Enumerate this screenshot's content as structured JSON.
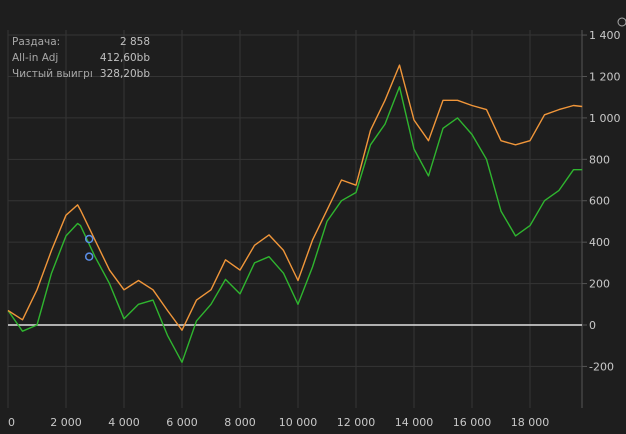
{
  "stats": [
    {
      "label": "Раздача:",
      "value": "2 858"
    },
    {
      "label": "All-in Adj",
      "value": "412,60bb"
    },
    {
      "label": "Чистый выигрı",
      "value": "328,20bb"
    }
  ],
  "chart_data": {
    "type": "line",
    "xlim": [
      0,
      19800
    ],
    "ylim": [
      -300,
      1450
    ],
    "xticks": [
      0,
      2000,
      4000,
      6000,
      8000,
      10000,
      12000,
      14000,
      16000,
      18000
    ],
    "xtick_labels": [
      "0",
      "2 000",
      "4 000",
      "6 000",
      "8 000",
      "10 000",
      "12 000",
      "14 000",
      "16 000",
      "18 000"
    ],
    "yticks": [
      -200,
      0,
      200,
      400,
      600,
      800,
      1000,
      1200,
      1400
    ],
    "ytick_labels": [
      "-200",
      "0",
      "200",
      "400",
      "600",
      "800",
      "1 000",
      "1 200",
      "1 400"
    ],
    "grid": true,
    "x": [
      0,
      500,
      1000,
      1500,
      2000,
      2400,
      2500,
      3000,
      3500,
      4000,
      4500,
      5000,
      5500,
      6000,
      6500,
      7000,
      7500,
      8000,
      8500,
      9000,
      9500,
      10000,
      10500,
      11000,
      11500,
      12000,
      12500,
      13000,
      13500,
      14000,
      14500,
      15000,
      15500,
      16000,
      16500,
      17000,
      17500,
      18000,
      18500,
      19000,
      19500,
      19800
    ],
    "series": [
      {
        "color": "#f0963a",
        "values": [
          70,
          25,
          170,
          360,
          530,
          580,
          555,
          410,
          265,
          170,
          215,
          170,
          70,
          -25,
          120,
          170,
          315,
          265,
          385,
          435,
          360,
          215,
          410,
          555,
          700,
          675,
          940,
          1085,
          1255,
          990,
          890,
          1085,
          1085,
          1060,
          1040,
          890,
          870,
          890,
          1015,
          1040,
          1060,
          1055
        ]
      },
      {
        "color": "#2fb52f",
        "values": [
          70,
          -30,
          0,
          250,
          430,
          490,
          480,
          330,
          200,
          30,
          100,
          120,
          -50,
          -180,
          20,
          100,
          220,
          150,
          300,
          330,
          250,
          100,
          280,
          500,
          600,
          640,
          870,
          970,
          1150,
          850,
          720,
          950,
          1000,
          920,
          800,
          550,
          430,
          480,
          600,
          650,
          750,
          750
        ]
      }
    ],
    "markers": [
      {
        "x": 2800,
        "y": 415,
        "color": "#5b8fe8"
      },
      {
        "x": 2800,
        "y": 330,
        "color": "#5b8fe8"
      }
    ],
    "zero_line_color": "#e0e0e0"
  }
}
